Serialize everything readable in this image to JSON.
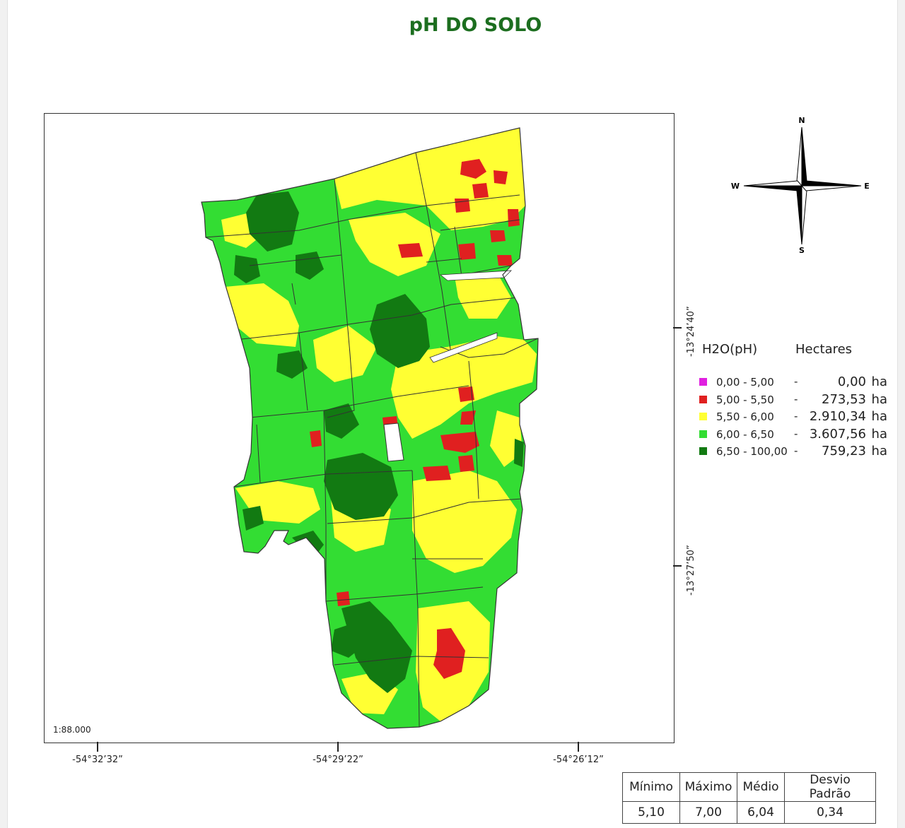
{
  "title": "pH DO SOLO",
  "scale": "1:88.000",
  "coordinates": {
    "x": [
      "-54°32’32”",
      "-54°29’22”",
      "-54°26’12”"
    ],
    "y": [
      "-13°24’40”",
      "-13°27’50”"
    ]
  },
  "compass": {
    "n": "N",
    "s": "S",
    "e": "E",
    "w": "W"
  },
  "legend": {
    "header_class": "H2O(pH)",
    "header_area": "Hectares",
    "items": [
      {
        "range": "0,00 - 5,00",
        "dash": "-",
        "value": "0,00",
        "unit": "ha",
        "color": "#e020e0"
      },
      {
        "range": "5,00 - 5,50",
        "dash": "-",
        "value": "273,53",
        "unit": "ha",
        "color": "#e02020"
      },
      {
        "range": "5,50 - 6,00",
        "dash": "-",
        "value": "2.910,34",
        "unit": "ha",
        "color": "#ffff33"
      },
      {
        "range": "6,00 - 6,50",
        "dash": "-",
        "value": "3.607,56",
        "unit": "ha",
        "color": "#33dd33"
      },
      {
        "range": "6,50 - 100,00",
        "dash": "-",
        "value": "759,23",
        "unit": "ha",
        "color": "#127a12"
      }
    ]
  },
  "stats": {
    "headers": [
      "Mínimo",
      "Máximo",
      "Médio",
      "Desvio Padrão"
    ],
    "values": [
      "5,10",
      "7,00",
      "6,04",
      "0,34"
    ]
  },
  "colors": {
    "title": "#1c6e1f",
    "low": "#e02020",
    "mid": "#ffff33",
    "good": "#33dd33",
    "high": "#127a12"
  }
}
